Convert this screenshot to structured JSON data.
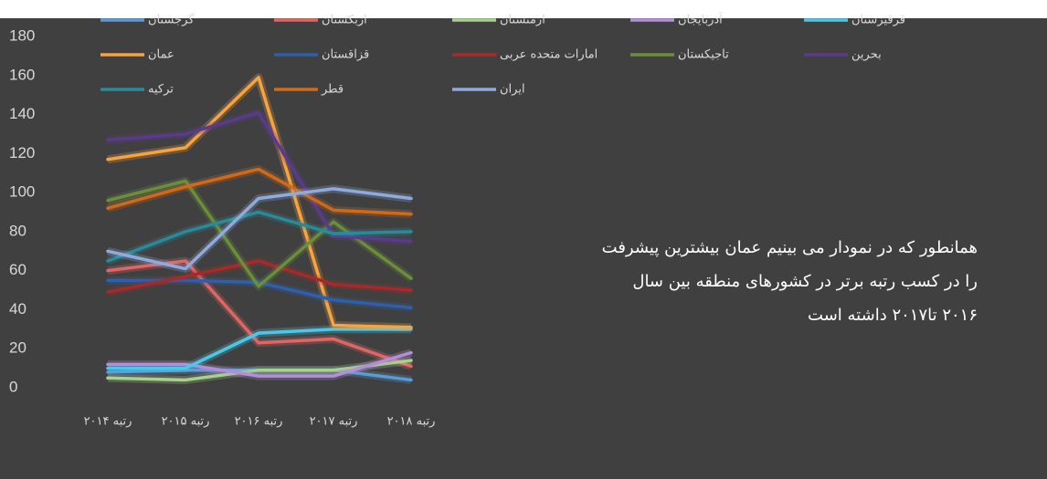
{
  "chart_data": {
    "type": "line",
    "categories": [
      "رتبه ۲۰۱۴",
      "رتبه ۲۰۱۵",
      "رتبه ۲۰۱۶",
      "رتبه ۲۰۱۷",
      "رتبه ۲۰۱۸"
    ],
    "series": [
      {
        "name": "گرجستان",
        "color": "#5b9bd5",
        "values": [
          8,
          9,
          9,
          9,
          4
        ]
      },
      {
        "name": "ازبکستان",
        "color": "#e06666",
        "values": [
          60,
          65,
          23,
          25,
          11
        ]
      },
      {
        "name": "ارمنستان",
        "color": "#a9d18e",
        "values": [
          5,
          4,
          9,
          9,
          14
        ]
      },
      {
        "name": "آذربایجان",
        "color": "#b48fd9",
        "values": [
          12,
          12,
          6,
          6,
          18
        ]
      },
      {
        "name": "قرقیزستان",
        "color": "#4bc8e8",
        "values": [
          10,
          10,
          28,
          30,
          30
        ]
      },
      {
        "name": "عمان",
        "color": "#f6a340",
        "values": [
          117,
          123,
          159,
          32,
          31
        ]
      },
      {
        "name": "قزاقستان",
        "color": "#2e5fa8",
        "values": [
          55,
          55,
          54,
          45,
          41
        ]
      },
      {
        "name": "امارات متحده عربی",
        "color": "#a52a2a",
        "values": [
          49,
          57,
          65,
          53,
          50
        ]
      },
      {
        "name": "تاجیکستان",
        "color": "#6a8e3a",
        "values": [
          96,
          106,
          52,
          85,
          56
        ]
      },
      {
        "name": "بحرین",
        "color": "#5a3a8a",
        "values": [
          127,
          130,
          141,
          78,
          75
        ]
      },
      {
        "name": "ترکیه",
        "color": "#2a8a9a",
        "values": [
          65,
          80,
          90,
          79,
          80
        ]
      },
      {
        "name": "قطر",
        "color": "#d06a1a",
        "values": [
          92,
          103,
          112,
          91,
          89
        ]
      },
      {
        "name": "ایران",
        "color": "#8faadc",
        "values": [
          70,
          61,
          97,
          102,
          97
        ]
      }
    ],
    "ylim": [
      0,
      180
    ],
    "yticks": [
      0,
      20,
      40,
      60,
      80,
      100,
      120,
      140,
      160,
      180
    ],
    "annotation": [
      "همانطور که در نمودار می بینیم عمان بیشترین پیشرفت",
      "را در کسب رتبه برتر در کشورهای منطقه بین سال",
      "۲۰۱۶ تا۲۰۱۷ داشته است"
    ]
  }
}
